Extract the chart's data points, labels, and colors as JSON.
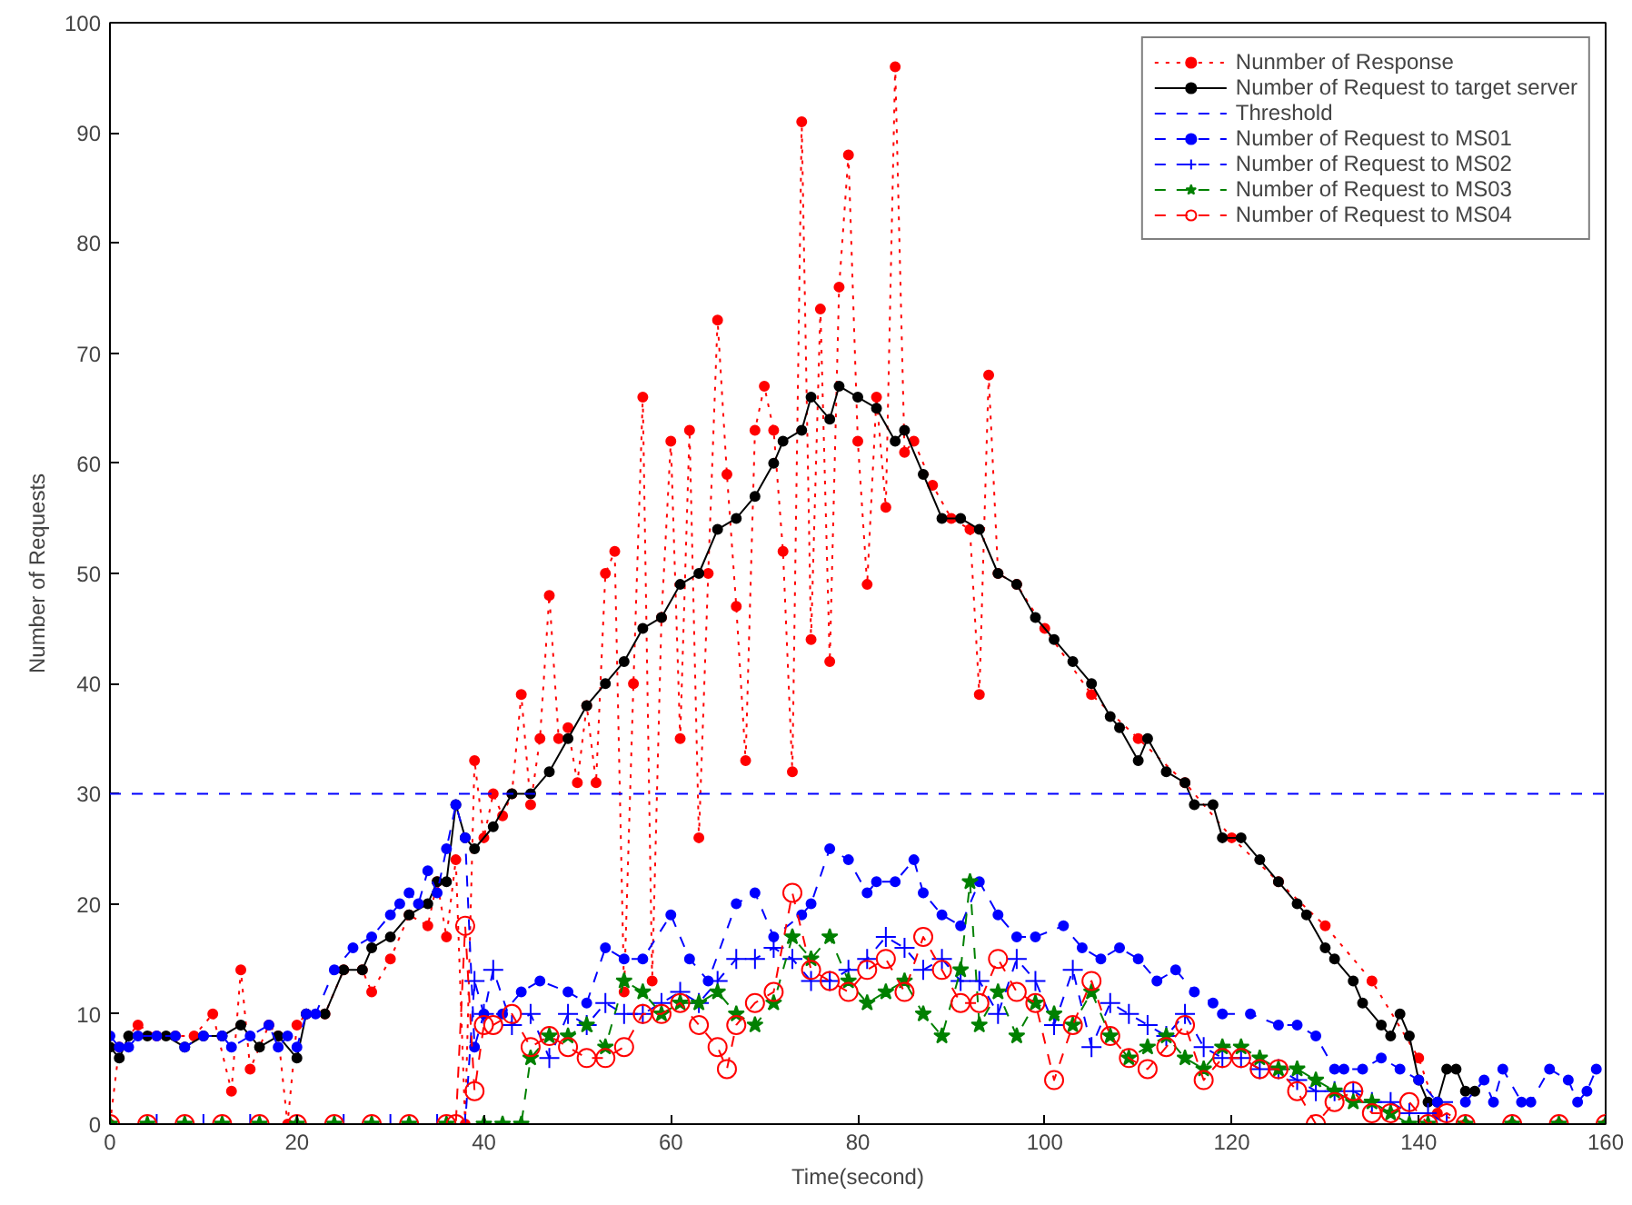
{
  "chart_data": {
    "type": "line",
    "xlabel": "Time(second)",
    "ylabel": "Number of Requests",
    "xlim": [
      0,
      160
    ],
    "xticks": [
      0,
      20,
      40,
      60,
      80,
      100,
      120,
      140,
      160
    ],
    "ylim": [
      0,
      100
    ],
    "yticks": [
      0,
      10,
      20,
      30,
      40,
      50,
      60,
      70,
      80,
      90,
      100
    ],
    "grid": false,
    "legend": "top right",
    "ref_lines": [
      {
        "axis": "y",
        "value": 30,
        "label": "Threshold",
        "color": "#0000ff",
        "line_style": "dashed"
      }
    ],
    "series": [
      {
        "name": "Nunmber of Response",
        "color": "#ff0000",
        "marker": "circle",
        "line_style": "dotted",
        "x": [
          0,
          1,
          3,
          5,
          7,
          9,
          11,
          13,
          14,
          15,
          17,
          18,
          19,
          20,
          21,
          23,
          25,
          27,
          28,
          30,
          32,
          34,
          35,
          36,
          37,
          38,
          39,
          40,
          41,
          42,
          43,
          44,
          45,
          46,
          47,
          48,
          49,
          50,
          51,
          52,
          53,
          54,
          55,
          56,
          57,
          58,
          59,
          60,
          61,
          62,
          63,
          64,
          65,
          66,
          67,
          68,
          69,
          70,
          71,
          72,
          73,
          74,
          75,
          76,
          77,
          78,
          79,
          80,
          81,
          82,
          83,
          84,
          85,
          86,
          88,
          90,
          92,
          93,
          94,
          95,
          97,
          100,
          105,
          110,
          115,
          120,
          125,
          130,
          135,
          140,
          142,
          145,
          150,
          155,
          160
        ],
        "values": [
          0,
          7,
          9,
          8,
          8,
          8,
          10,
          3,
          14,
          5,
          9,
          8,
          0,
          9,
          10,
          10,
          14,
          14,
          12,
          15,
          19,
          18,
          22,
          17,
          24,
          0,
          33,
          26,
          30,
          28,
          30,
          39,
          29,
          35,
          48,
          35,
          36,
          31,
          38,
          31,
          50,
          52,
          12,
          40,
          66,
          13,
          46,
          62,
          35,
          63,
          26,
          50,
          73,
          59,
          47,
          33,
          63,
          67,
          63,
          52,
          32,
          91,
          44,
          74,
          42,
          76,
          88,
          62,
          49,
          66,
          56,
          96,
          61,
          62,
          58,
          55,
          54,
          39,
          68,
          50,
          49,
          45,
          39,
          35,
          31,
          26,
          22,
          18,
          13,
          6,
          1,
          0,
          0,
          0,
          0
        ]
      },
      {
        "name": "Number of Request to target server",
        "color": "#000000",
        "marker": "circle",
        "line_style": "solid",
        "x": [
          0,
          1,
          2,
          4,
          6,
          8,
          10,
          12,
          14,
          16,
          18,
          20,
          21,
          23,
          25,
          27,
          28,
          30,
          32,
          34,
          35,
          36,
          37,
          38,
          39,
          41,
          43,
          45,
          47,
          49,
          51,
          53,
          55,
          57,
          59,
          61,
          63,
          65,
          67,
          69,
          71,
          72,
          74,
          75,
          77,
          78,
          80,
          82,
          84,
          85,
          87,
          89,
          91,
          93,
          95,
          97,
          99,
          101,
          103,
          105,
          107,
          108,
          110,
          111,
          113,
          115,
          116,
          118,
          119,
          121,
          123,
          125,
          127,
          128,
          130,
          131,
          133,
          134,
          136,
          137,
          138,
          139,
          140,
          141,
          142,
          143,
          144,
          145,
          146
        ],
        "values": [
          7,
          6,
          8,
          8,
          8,
          7,
          8,
          8,
          9,
          7,
          8,
          6,
          10,
          10,
          14,
          14,
          16,
          17,
          19,
          20,
          22,
          22,
          29,
          26,
          25,
          27,
          30,
          30,
          32,
          35,
          38,
          40,
          42,
          45,
          46,
          49,
          50,
          54,
          55,
          57,
          60,
          62,
          63,
          66,
          64,
          67,
          66,
          65,
          62,
          63,
          59,
          55,
          55,
          54,
          50,
          49,
          46,
          44,
          42,
          40,
          37,
          36,
          33,
          35,
          32,
          31,
          29,
          29,
          26,
          26,
          24,
          22,
          20,
          19,
          16,
          15,
          13,
          11,
          9,
          8,
          10,
          8,
          4,
          2,
          2,
          5,
          5,
          3,
          3
        ]
      },
      {
        "name": "Number of Request to MS01",
        "color": "#0000ff",
        "marker": "circle",
        "line_style": "dashed",
        "x": [
          0,
          1,
          2,
          3,
          5,
          7,
          8,
          10,
          12,
          13,
          15,
          17,
          18,
          19,
          20,
          21,
          22,
          24,
          26,
          28,
          30,
          31,
          32,
          33,
          34,
          35,
          36,
          37,
          38,
          39,
          40,
          42,
          44,
          46,
          49,
          51,
          53,
          55,
          57,
          60,
          62,
          64,
          67,
          69,
          71,
          74,
          75,
          77,
          79,
          81,
          82,
          84,
          86,
          87,
          89,
          91,
          93,
          95,
          97,
          99,
          102,
          104,
          106,
          108,
          110,
          112,
          114,
          116,
          118,
          119,
          122,
          125,
          127,
          129,
          131,
          132,
          134,
          136,
          138,
          140,
          142,
          145,
          147,
          148,
          149,
          151,
          152,
          154,
          156,
          157,
          158,
          159
        ],
        "values": [
          8,
          7,
          7,
          8,
          8,
          8,
          7,
          8,
          8,
          7,
          8,
          9,
          7,
          8,
          7,
          10,
          10,
          14,
          16,
          17,
          19,
          20,
          21,
          20,
          23,
          21,
          25,
          29,
          26,
          7,
          10,
          10,
          12,
          13,
          12,
          11,
          16,
          15,
          15,
          19,
          15,
          13,
          20,
          21,
          17,
          19,
          20,
          25,
          24,
          21,
          22,
          22,
          24,
          21,
          19,
          18,
          22,
          19,
          17,
          17,
          18,
          16,
          15,
          16,
          15,
          13,
          14,
          12,
          11,
          10,
          10,
          9,
          9,
          8,
          5,
          5,
          5,
          6,
          5,
          4,
          2,
          2,
          4,
          2,
          5,
          2,
          2,
          5,
          4,
          2,
          3,
          5
        ]
      },
      {
        "name": "Number of Request to MS02",
        "color": "#0000ff",
        "marker": "cross",
        "line_style": "dashed",
        "x": [
          0,
          5,
          10,
          15,
          20,
          25,
          30,
          35,
          38,
          39,
          40,
          41,
          43,
          45,
          47,
          49,
          51,
          53,
          55,
          57,
          59,
          61,
          63,
          65,
          67,
          69,
          71,
          73,
          75,
          77,
          79,
          81,
          83,
          85,
          87,
          89,
          91,
          93,
          95,
          97,
          99,
          101,
          103,
          105,
          107,
          109,
          111,
          113,
          115,
          117,
          119,
          121,
          123,
          125,
          127,
          129,
          131,
          133,
          135,
          137,
          139,
          141,
          143,
          145,
          150
        ],
        "values": [
          0,
          0,
          0,
          0,
          0,
          0,
          0,
          0,
          0,
          13,
          10,
          14,
          9,
          10,
          6,
          10,
          9,
          11,
          10,
          10,
          11,
          12,
          11,
          13,
          15,
          15,
          16,
          15,
          13,
          13,
          14,
          15,
          17,
          16,
          14,
          15,
          13,
          13,
          10,
          15,
          13,
          9,
          14,
          7,
          11,
          10,
          9,
          8,
          10,
          7,
          6,
          6,
          5,
          5,
          4,
          3,
          3,
          3,
          2,
          2,
          1,
          1,
          0,
          0,
          0
        ]
      },
      {
        "name": "Number of Request to MS03",
        "color": "#008000",
        "marker": "star",
        "line_style": "dashed",
        "x": [
          0,
          4,
          8,
          12,
          16,
          20,
          24,
          28,
          32,
          36,
          40,
          42,
          44,
          45,
          47,
          49,
          51,
          53,
          55,
          57,
          59,
          61,
          63,
          65,
          67,
          69,
          71,
          73,
          75,
          77,
          79,
          81,
          83,
          85,
          87,
          89,
          91,
          92,
          93,
          95,
          97,
          99,
          101,
          103,
          105,
          107,
          109,
          111,
          113,
          115,
          117,
          119,
          121,
          123,
          125,
          127,
          129,
          131,
          133,
          135,
          137,
          139,
          141,
          145,
          150,
          155,
          160
        ],
        "values": [
          0,
          0,
          0,
          0,
          0,
          0,
          0,
          0,
          0,
          0,
          0,
          0,
          0,
          6,
          8,
          8,
          9,
          7,
          13,
          12,
          10,
          11,
          11,
          12,
          10,
          9,
          11,
          17,
          15,
          17,
          13,
          11,
          12,
          13,
          10,
          8,
          14,
          22,
          9,
          12,
          8,
          11,
          10,
          9,
          12,
          8,
          6,
          7,
          8,
          6,
          5,
          7,
          7,
          6,
          5,
          5,
          4,
          3,
          2,
          2,
          1,
          0,
          0,
          0,
          0,
          0,
          0
        ]
      },
      {
        "name": "Number of Request to MS04",
        "color": "#ff0000",
        "marker": "circle_open",
        "line_style": "dashed",
        "x": [
          0,
          4,
          8,
          12,
          16,
          20,
          24,
          28,
          32,
          36,
          37,
          38,
          39,
          40,
          41,
          43,
          45,
          47,
          49,
          51,
          53,
          55,
          57,
          59,
          61,
          63,
          65,
          66,
          67,
          69,
          71,
          73,
          75,
          77,
          79,
          81,
          83,
          85,
          87,
          89,
          91,
          93,
          95,
          97,
          99,
          101,
          103,
          105,
          107,
          109,
          111,
          113,
          115,
          117,
          119,
          121,
          123,
          125,
          127,
          129,
          131,
          133,
          135,
          137,
          139,
          141,
          143,
          145,
          150,
          155,
          160
        ],
        "values": [
          0,
          0,
          0,
          0,
          0,
          0,
          0,
          0,
          0,
          0,
          0,
          18,
          3,
          9,
          9,
          10,
          7,
          8,
          7,
          6,
          6,
          7,
          10,
          10,
          11,
          9,
          7,
          5,
          9,
          11,
          12,
          21,
          14,
          13,
          12,
          14,
          15,
          12,
          17,
          14,
          11,
          11,
          15,
          12,
          11,
          4,
          9,
          13,
          8,
          6,
          5,
          7,
          9,
          4,
          6,
          6,
          5,
          5,
          3,
          0,
          2,
          3,
          1,
          1,
          2,
          0,
          1,
          0,
          0,
          0,
          0
        ]
      }
    ]
  }
}
